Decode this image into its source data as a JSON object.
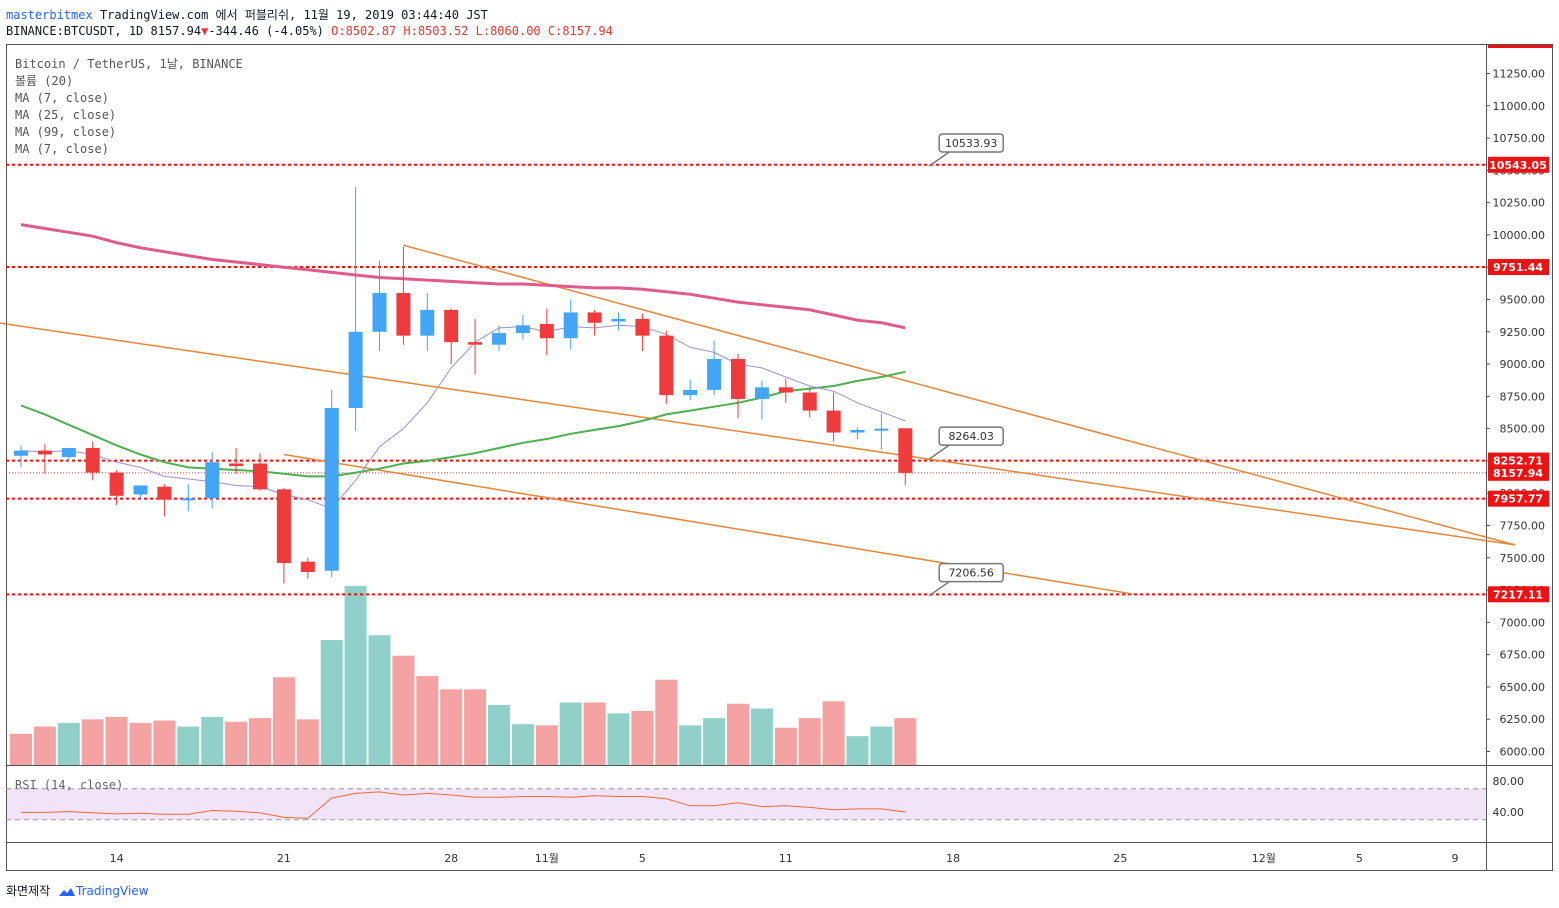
{
  "header": {
    "author": "masterbitmex",
    "published": "TradingView.com 에서 퍼블리쉬, 11월 19, 2019 03:44:40 JST",
    "symbol": "BINANCE:BTCUSDT, 1D 8157.94",
    "change": "-344.46 (-4.05%)",
    "ohlc": "O:8502.87 H:8503.52 L:8060.00 C:8157.94"
  },
  "legend": {
    "title": "Bitcoin / TetherUS, 1날, BINANCE",
    "volume": "볼륨 (20)",
    "ma1": "MA (7, close)",
    "ma2": "MA (25, close)",
    "ma3": "MA (99, close)",
    "ma4": "MA (7, close)"
  },
  "footer": {
    "snapshot": "화면제작",
    "brand": "TradingView"
  },
  "colors": {
    "up": "#42a5f5",
    "down": "#ef3b3b",
    "vol_up": "#8fd1c8",
    "vol_down": "#f4a2a2",
    "ma7": "#9c8fd6",
    "ma25": "#4caf50",
    "ma99": "#e05a8c",
    "trend": "#e8863a",
    "hline": "#ee1111"
  },
  "chart_data": {
    "type": "candlestick",
    "ylim": [
      5900,
      11450
    ],
    "y_ticks": [
      6000,
      6250,
      6500,
      6750,
      7000,
      7250,
      7500,
      7750,
      8000,
      8250,
      8500,
      8750,
      9000,
      9250,
      9500,
      9750,
      10000,
      10250,
      10500,
      10750,
      11000,
      11250
    ],
    "y_tick_labels": [
      "6000.00",
      "6250.00",
      "6500.00",
      "6750.00",
      "7000.00",
      "7250.00",
      "7500.00",
      "7750.00",
      "8000.00",
      "8250.00",
      "8500.00",
      "8750.00",
      "9000.00",
      "9250.00",
      "9500.00",
      "9750.00",
      "10000.00",
      "10250.00",
      "10500.00",
      "10750.00",
      "11000.00",
      "11250.00"
    ],
    "x_ticks": [
      {
        "day": 4,
        "label": "14"
      },
      {
        "day": 11,
        "label": "21"
      },
      {
        "day": 18,
        "label": "28"
      },
      {
        "day": 22,
        "label": "11월"
      },
      {
        "day": 26,
        "label": "5"
      },
      {
        "day": 32,
        "label": "11"
      },
      {
        "day": 39,
        "label": "18"
      },
      {
        "day": 46,
        "label": "25"
      },
      {
        "day": 52,
        "label": "12월"
      },
      {
        "day": 56,
        "label": "5"
      },
      {
        "day": 60,
        "label": "9"
      }
    ],
    "candles": [
      {
        "o": 8290,
        "h": 8370,
        "l": 8200,
        "c": 8330
      },
      {
        "o": 8330,
        "h": 8380,
        "l": 8150,
        "c": 8300
      },
      {
        "o": 8280,
        "h": 8350,
        "l": 8240,
        "c": 8350
      },
      {
        "o": 8350,
        "h": 8400,
        "l": 8100,
        "c": 8160
      },
      {
        "o": 8160,
        "h": 8180,
        "l": 7910,
        "c": 7980
      },
      {
        "o": 7990,
        "h": 8060,
        "l": 7960,
        "c": 8060
      },
      {
        "o": 8050,
        "h": 8070,
        "l": 7820,
        "c": 7950
      },
      {
        "o": 7950,
        "h": 8070,
        "l": 7860,
        "c": 7960
      },
      {
        "o": 7960,
        "h": 8320,
        "l": 7880,
        "c": 8240
      },
      {
        "o": 8230,
        "h": 8350,
        "l": 8150,
        "c": 8210
      },
      {
        "o": 8230,
        "h": 8310,
        "l": 8020,
        "c": 8030
      },
      {
        "o": 8030,
        "h": 8040,
        "l": 7300,
        "c": 7460
      },
      {
        "o": 7470,
        "h": 7500,
        "l": 7340,
        "c": 7390
      },
      {
        "o": 7400,
        "h": 8800,
        "l": 7350,
        "c": 8660
      },
      {
        "o": 8660,
        "h": 10370,
        "l": 8480,
        "c": 9250
      },
      {
        "o": 9250,
        "h": 9800,
        "l": 9100,
        "c": 9550
      },
      {
        "o": 9550,
        "h": 9910,
        "l": 9150,
        "c": 9220
      },
      {
        "o": 9220,
        "h": 9550,
        "l": 9100,
        "c": 9420
      },
      {
        "o": 9420,
        "h": 9430,
        "l": 9000,
        "c": 9170
      },
      {
        "o": 9170,
        "h": 9350,
        "l": 8920,
        "c": 9150
      },
      {
        "o": 9150,
        "h": 9300,
        "l": 9100,
        "c": 9240
      },
      {
        "o": 9240,
        "h": 9380,
        "l": 9190,
        "c": 9300
      },
      {
        "o": 9310,
        "h": 9430,
        "l": 9070,
        "c": 9200
      },
      {
        "o": 9200,
        "h": 9500,
        "l": 9110,
        "c": 9400
      },
      {
        "o": 9400,
        "h": 9420,
        "l": 9220,
        "c": 9320
      },
      {
        "o": 9330,
        "h": 9400,
        "l": 9260,
        "c": 9350
      },
      {
        "o": 9350,
        "h": 9390,
        "l": 9100,
        "c": 9220
      },
      {
        "o": 9220,
        "h": 9260,
        "l": 8690,
        "c": 8760
      },
      {
        "o": 8760,
        "h": 8880,
        "l": 8720,
        "c": 8800
      },
      {
        "o": 8800,
        "h": 9180,
        "l": 8760,
        "c": 9040
      },
      {
        "o": 9040,
        "h": 9080,
        "l": 8580,
        "c": 8730
      },
      {
        "o": 8730,
        "h": 8870,
        "l": 8570,
        "c": 8820
      },
      {
        "o": 8820,
        "h": 8890,
        "l": 8700,
        "c": 8780
      },
      {
        "o": 8780,
        "h": 8820,
        "l": 8590,
        "c": 8640
      },
      {
        "o": 8640,
        "h": 8780,
        "l": 8400,
        "c": 8470
      },
      {
        "o": 8470,
        "h": 8510,
        "l": 8420,
        "c": 8490
      },
      {
        "o": 8490,
        "h": 8620,
        "l": 8340,
        "c": 8500
      },
      {
        "o": 8502.87,
        "h": 8503.52,
        "l": 8060,
        "c": 8157.94
      }
    ],
    "volume_up": [
      0,
      0,
      1,
      0,
      0,
      0,
      0,
      1,
      1,
      0,
      0,
      0,
      0,
      1,
      1,
      1,
      0,
      0,
      0,
      0,
      1,
      1,
      0,
      1,
      0,
      1,
      0,
      0,
      1,
      1,
      0,
      1,
      0,
      0,
      0,
      1,
      1,
      0
    ],
    "volume_rel": [
      0.26,
      0.32,
      0.35,
      0.38,
      0.4,
      0.35,
      0.37,
      0.32,
      0.4,
      0.36,
      0.39,
      0.73,
      0.38,
      1.04,
      1.49,
      1.08,
      0.91,
      0.74,
      0.63,
      0.63,
      0.5,
      0.34,
      0.33,
      0.52,
      0.52,
      0.43,
      0.45,
      0.71,
      0.33,
      0.39,
      0.51,
      0.47,
      0.31,
      0.39,
      0.53,
      0.24,
      0.32,
      0.39
    ],
    "ma7": [
      8330,
      8320,
      8330,
      8300,
      8240,
      8200,
      8130,
      8110,
      8090,
      8060,
      8050,
      7990,
      7950,
      7880,
      8100,
      8360,
      8500,
      8700,
      8970,
      9170,
      9280,
      9290,
      9250,
      9290,
      9280,
      9300,
      9290,
      9230,
      9130,
      9090,
      9000,
      8970,
      8900,
      8830,
      8790,
      8700,
      8630,
      8560
    ],
    "ma25": [
      8680,
      8610,
      8530,
      8450,
      8370,
      8300,
      8240,
      8200,
      8190,
      8180,
      8170,
      8150,
      8130,
      8130,
      8160,
      8190,
      8230,
      8250,
      8280,
      8310,
      8350,
      8390,
      8420,
      8460,
      8490,
      8520,
      8560,
      8610,
      8640,
      8670,
      8700,
      8740,
      8790,
      8810,
      8830,
      8870,
      8900,
      8940
    ],
    "ma99": [
      10080,
      10050,
      10020,
      9990,
      9940,
      9900,
      9870,
      9840,
      9810,
      9790,
      9770,
      9750,
      9730,
      9710,
      9690,
      9670,
      9660,
      9650,
      9640,
      9630,
      9620,
      9620,
      9610,
      9600,
      9590,
      9590,
      9580,
      9560,
      9540,
      9510,
      9480,
      9460,
      9440,
      9420,
      9380,
      9340,
      9320,
      9280
    ],
    "hlines": [
      10543.05,
      9751.44,
      8252.71,
      7957.77,
      7217.11
    ],
    "last_price": 8157.94,
    "price_labels": [
      "10543.05",
      "9751.44",
      "8252.71",
      "8157.94",
      "7957.77",
      "7217.11"
    ],
    "callouts": [
      {
        "text": "10533.93",
        "day": 38,
        "value": 10533.93
      },
      {
        "text": "8264.03",
        "day": 38,
        "value": 8264.03
      },
      {
        "text": "7206.56",
        "day": 38,
        "value": 7206.56
      }
    ],
    "trendlines": [
      {
        "from_day": -1,
        "from_value": 9320,
        "to_day": 62.5,
        "to_value": 7600
      },
      {
        "from_day": 16,
        "from_value": 9920,
        "to_day": 62.5,
        "to_value": 7600
      },
      {
        "from_day": 11,
        "from_value": 8300,
        "to_day": 46.5,
        "to_value": 7220
      }
    ],
    "rsi": {
      "title": "RSI (14, close)",
      "ylim": [
        15,
        85
      ],
      "band": [
        30,
        70
      ],
      "ticks": [
        80,
        40
      ],
      "tick_labels": [
        "80.00",
        "40.00"
      ],
      "values": [
        39.5,
        39.5,
        40.5,
        39,
        37.5,
        38.5,
        37,
        37,
        42,
        41,
        39,
        33,
        32,
        58,
        64,
        66,
        62,
        64,
        62,
        59,
        59,
        60,
        60,
        59,
        61,
        60,
        60,
        57,
        48,
        48,
        52,
        47,
        48,
        46,
        43,
        44,
        44,
        40
      ]
    }
  }
}
